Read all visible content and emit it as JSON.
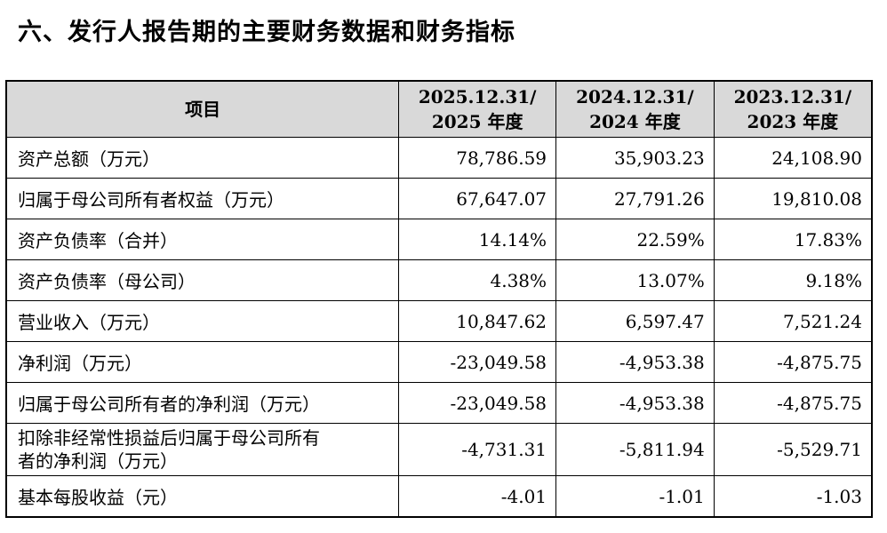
{
  "title": "六、发行人报告期的主要财务数据和财务指标",
  "table": {
    "header": {
      "item": "项目",
      "periods": [
        {
          "line1": "2025.12.31/",
          "line2": "2025 年度"
        },
        {
          "line1": "2024.12.31/",
          "line2": "2024 年度"
        },
        {
          "line1": "2023.12.31/",
          "line2": "2023 年度"
        }
      ]
    },
    "rows": [
      {
        "label": "资产总额（万元）",
        "v2025": "78,786.59",
        "v2024": "35,903.23",
        "v2023": "24,108.90"
      },
      {
        "label": "归属于母公司所有者权益（万元）",
        "v2025": "67,647.07",
        "v2024": "27,791.26",
        "v2023": "19,810.08"
      },
      {
        "label": "资产负债率（合并）",
        "v2025": "14.14%",
        "v2024": "22.59%",
        "v2023": "17.83%"
      },
      {
        "label": "资产负债率（母公司）",
        "v2025": "4.38%",
        "v2024": "13.07%",
        "v2023": "9.18%"
      },
      {
        "label": "营业收入（万元）",
        "v2025": "10,847.62",
        "v2024": "6,597.47",
        "v2023": "7,521.24"
      },
      {
        "label": "净利润（万元）",
        "v2025": "-23,049.58",
        "v2024": "-4,953.38",
        "v2023": "-4,875.75"
      },
      {
        "label": "归属于母公司所有者的净利润（万元）",
        "v2025": "-23,049.58",
        "v2024": "-4,953.38",
        "v2023": "-4,875.75"
      },
      {
        "label_line1": "扣除非经常性损益后归属于母公司所有",
        "label_line2": "者的净利润（万元）",
        "v2025": "-4,731.31",
        "v2024": "-5,811.94",
        "v2023": "-5,529.71"
      },
      {
        "label": "基本每股收益（元）",
        "v2025": "-4.01",
        "v2024": "-1.01",
        "v2023": "-1.03"
      }
    ]
  }
}
